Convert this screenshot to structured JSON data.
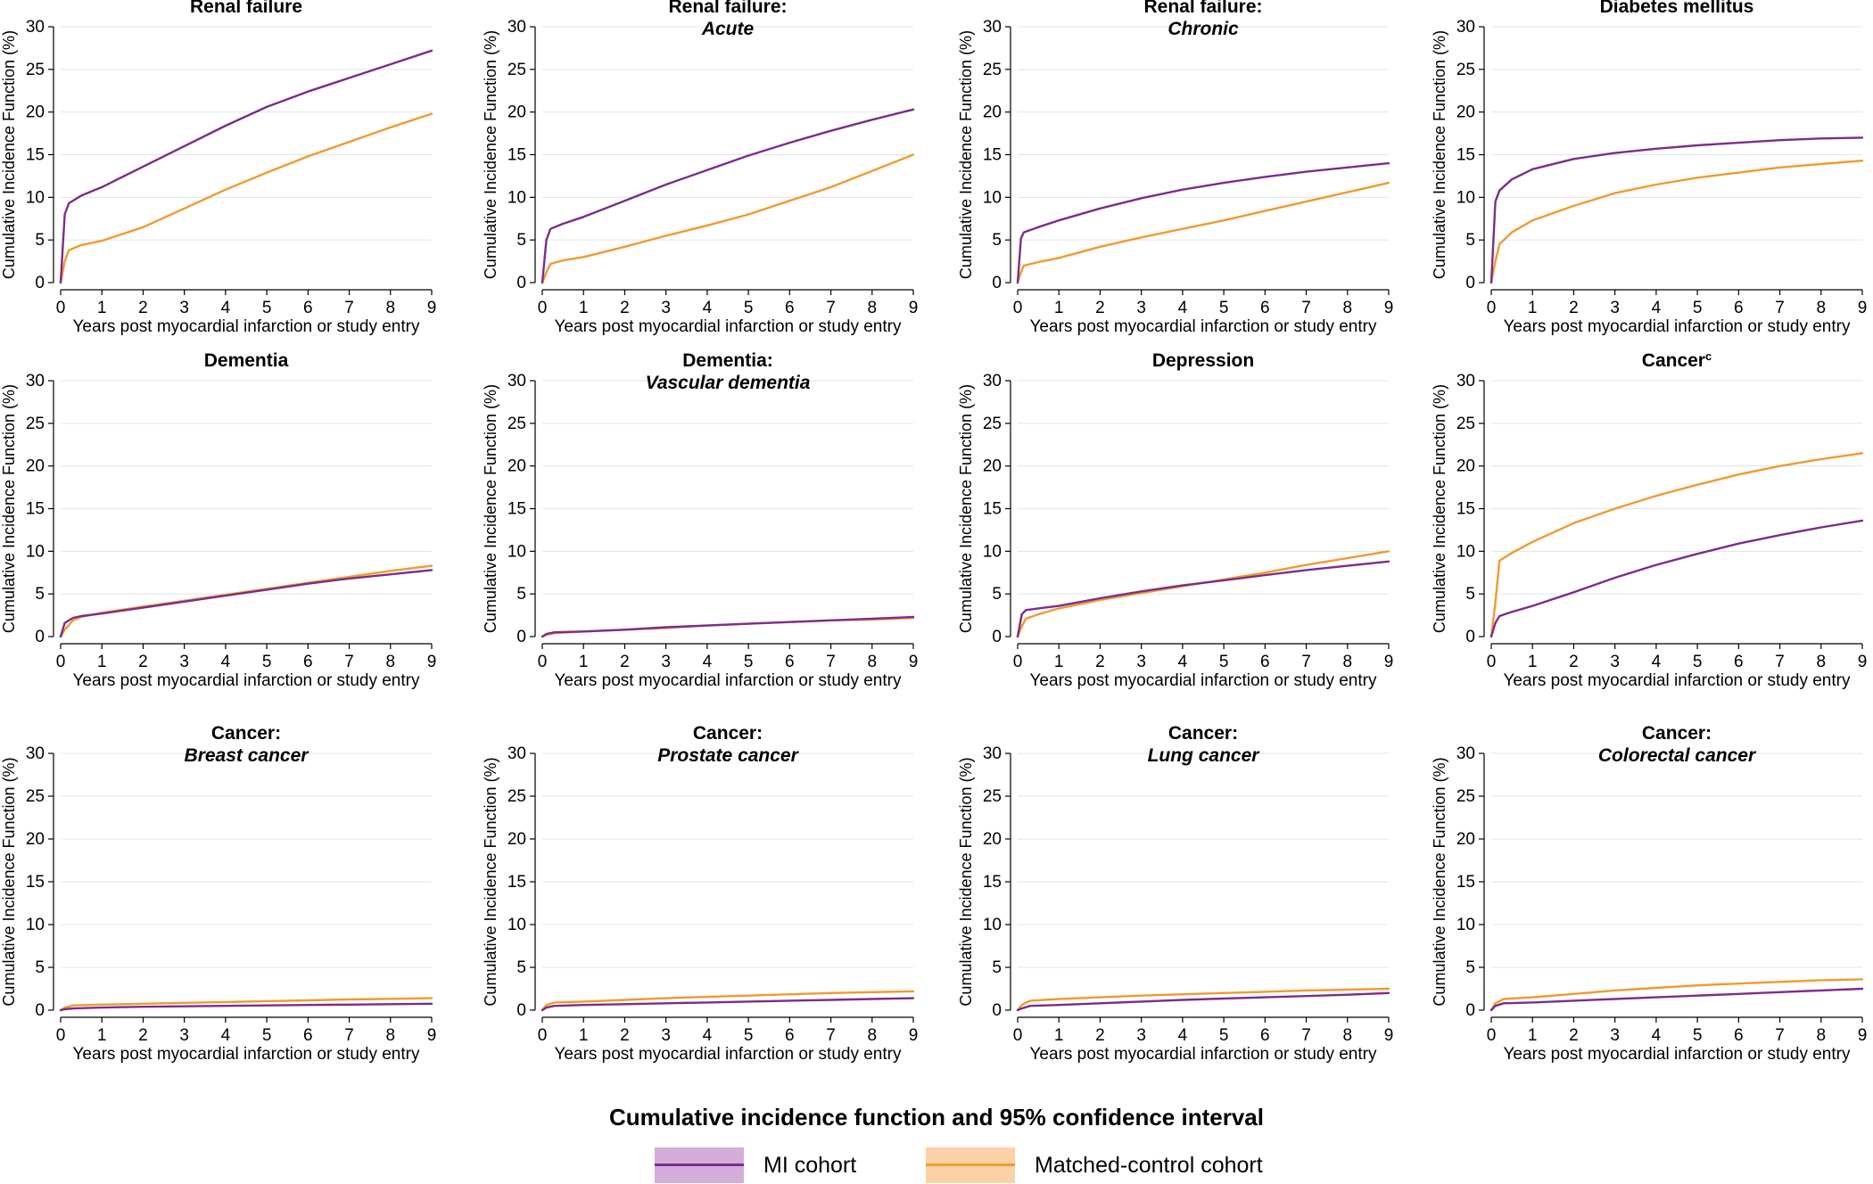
{
  "colors": {
    "mi": "#7B2D8B",
    "mi_band": "#D4AED9",
    "control": "#F09A2F",
    "control_band": "#FBD2A6",
    "grid": "#dce6ea"
  },
  "axis": {
    "ylabel": "Cumulative Incidence Function (%)",
    "xlabel": "Years post myocardial infarction or study entry",
    "xticks": [
      0,
      1,
      2,
      3,
      4,
      5,
      6,
      7,
      8,
      9
    ],
    "yticks": [
      0,
      5,
      10,
      15,
      20,
      25,
      30
    ]
  },
  "legend": {
    "title": "Cumulative incidence function and 95% confidence interval",
    "mi_label": "MI cohort",
    "control_label": "Matched-control cohort"
  },
  "chart_data": [
    {
      "type": "line",
      "title": "Renal failure",
      "subtitle": "",
      "x": [
        0,
        0.1,
        0.2,
        0.5,
        1,
        2,
        3,
        4,
        5,
        6,
        7,
        8,
        9
      ],
      "series": [
        {
          "name": "MI cohort",
          "values": [
            0,
            8.0,
            9.3,
            10.2,
            11.2,
            13.6,
            16.0,
            18.4,
            20.6,
            22.4,
            24.0,
            25.6,
            27.2
          ]
        },
        {
          "name": "Matched-control cohort",
          "values": [
            0,
            2.5,
            3.8,
            4.4,
            4.9,
            6.5,
            8.7,
            10.9,
            12.9,
            14.8,
            16.5,
            18.2,
            19.8
          ]
        }
      ],
      "xlim": [
        0,
        9
      ],
      "ylim": [
        0,
        30
      ]
    },
    {
      "type": "line",
      "title": "Renal failure:",
      "subtitle": "Acute",
      "x": [
        0,
        0.1,
        0.2,
        0.5,
        1,
        2,
        3,
        4,
        5,
        6,
        7,
        8,
        9
      ],
      "series": [
        {
          "name": "MI cohort",
          "values": [
            0,
            5.0,
            6.3,
            6.9,
            7.7,
            9.6,
            11.5,
            13.2,
            14.9,
            16.4,
            17.8,
            19.1,
            20.3
          ]
        },
        {
          "name": "Matched-control cohort",
          "values": [
            0,
            1.2,
            2.2,
            2.6,
            3.0,
            4.2,
            5.5,
            6.7,
            8.0,
            9.6,
            11.2,
            13.1,
            15.0
          ]
        }
      ],
      "xlim": [
        0,
        9
      ],
      "ylim": [
        0,
        30
      ]
    },
    {
      "type": "line",
      "title": "Renal failure:",
      "subtitle": "Chronic",
      "x": [
        0,
        0.08,
        0.15,
        0.5,
        1,
        2,
        3,
        4,
        5,
        6,
        7,
        8,
        9
      ],
      "series": [
        {
          "name": "MI cohort",
          "values": [
            0,
            5.2,
            5.9,
            6.5,
            7.3,
            8.7,
            9.9,
            10.9,
            11.7,
            12.4,
            13.0,
            13.5,
            14.0
          ]
        },
        {
          "name": "Matched-control cohort",
          "values": [
            0,
            1.2,
            2.0,
            2.4,
            2.9,
            4.2,
            5.3,
            6.3,
            7.3,
            8.4,
            9.5,
            10.6,
            11.7
          ]
        }
      ],
      "xlim": [
        0,
        9
      ],
      "ylim": [
        0,
        30
      ]
    },
    {
      "type": "line",
      "title": "Diabetes mellitus",
      "subtitle": "",
      "x": [
        0,
        0.1,
        0.2,
        0.5,
        1,
        2,
        3,
        4,
        5,
        6,
        7,
        8,
        9
      ],
      "series": [
        {
          "name": "MI cohort",
          "values": [
            0,
            9.5,
            10.8,
            12.1,
            13.3,
            14.5,
            15.2,
            15.7,
            16.1,
            16.4,
            16.7,
            16.9,
            17.0
          ]
        },
        {
          "name": "Matched-control cohort",
          "values": [
            0,
            2.5,
            4.5,
            5.9,
            7.3,
            9.0,
            10.5,
            11.5,
            12.3,
            12.9,
            13.5,
            13.9,
            14.3
          ]
        }
      ],
      "xlim": [
        0,
        9
      ],
      "ylim": [
        0,
        30
      ]
    },
    {
      "type": "line",
      "title": "Dementia",
      "subtitle": "",
      "x": [
        0,
        0.1,
        0.3,
        0.5,
        1,
        2,
        3,
        4,
        5,
        6,
        7,
        8,
        9
      ],
      "series": [
        {
          "name": "MI cohort",
          "values": [
            0,
            1.6,
            2.2,
            2.4,
            2.7,
            3.4,
            4.1,
            4.8,
            5.5,
            6.2,
            6.8,
            7.3,
            7.8
          ]
        },
        {
          "name": "Matched-control cohort",
          "values": [
            0,
            0.8,
            1.9,
            2.3,
            2.8,
            3.5,
            4.2,
            4.9,
            5.6,
            6.3,
            7.0,
            7.7,
            8.3
          ]
        }
      ],
      "xlim": [
        0,
        9
      ],
      "ylim": [
        0,
        30
      ]
    },
    {
      "type": "line",
      "title": "Dementia:",
      "subtitle": "Vascular dementia",
      "x": [
        0,
        0.1,
        0.3,
        1,
        2,
        3,
        4,
        5,
        6,
        7,
        8,
        9
      ],
      "series": [
        {
          "name": "MI cohort",
          "values": [
            0,
            0.3,
            0.5,
            0.6,
            0.8,
            1.1,
            1.3,
            1.5,
            1.7,
            1.9,
            2.1,
            2.3
          ]
        },
        {
          "name": "Matched-control cohort",
          "values": [
            0,
            0.2,
            0.4,
            0.6,
            0.8,
            1.0,
            1.3,
            1.5,
            1.7,
            1.9,
            2.0,
            2.2
          ]
        }
      ],
      "xlim": [
        0,
        9
      ],
      "ylim": [
        0,
        30
      ]
    },
    {
      "type": "line",
      "title": "Depression",
      "subtitle": "",
      "x": [
        0,
        0.1,
        0.2,
        0.5,
        1,
        2,
        3,
        4,
        5,
        6,
        7,
        8,
        9
      ],
      "series": [
        {
          "name": "MI cohort",
          "values": [
            0,
            2.6,
            3.1,
            3.3,
            3.6,
            4.5,
            5.3,
            6.0,
            6.6,
            7.2,
            7.8,
            8.3,
            8.8
          ]
        },
        {
          "name": "Matched-control cohort",
          "values": [
            0,
            1.2,
            2.1,
            2.6,
            3.3,
            4.3,
            5.1,
            5.9,
            6.7,
            7.5,
            8.4,
            9.2,
            10.0
          ]
        }
      ],
      "xlim": [
        0,
        9
      ],
      "ylim": [
        0,
        30
      ]
    },
    {
      "type": "line",
      "title": "Cancer",
      "title_superscript": "c",
      "subtitle": "",
      "x": [
        0,
        0.1,
        0.2,
        0.5,
        1,
        2,
        3,
        4,
        5,
        6,
        7,
        8,
        9
      ],
      "series": [
        {
          "name": "MI cohort",
          "values": [
            0,
            1.6,
            2.4,
            2.9,
            3.6,
            5.2,
            6.9,
            8.4,
            9.7,
            10.9,
            11.9,
            12.8,
            13.6
          ]
        },
        {
          "name": "Matched-control cohort",
          "values": [
            0,
            4.0,
            8.9,
            9.8,
            11.1,
            13.3,
            15.0,
            16.5,
            17.8,
            19.0,
            20.0,
            20.8,
            21.5
          ]
        }
      ],
      "xlim": [
        0,
        9
      ],
      "ylim": [
        0,
        30
      ]
    },
    {
      "type": "line",
      "title": "Cancer:",
      "subtitle": "Breast cancer",
      "x": [
        0,
        0.1,
        0.3,
        1,
        2,
        3,
        4,
        5,
        6,
        7,
        8,
        9
      ],
      "series": [
        {
          "name": "MI cohort",
          "values": [
            0,
            0.1,
            0.2,
            0.3,
            0.4,
            0.45,
            0.5,
            0.55,
            0.6,
            0.65,
            0.7,
            0.75
          ]
        },
        {
          "name": "Matched-control cohort",
          "values": [
            0,
            0.3,
            0.55,
            0.65,
            0.75,
            0.85,
            0.95,
            1.05,
            1.15,
            1.25,
            1.32,
            1.4
          ]
        }
      ],
      "xlim": [
        0,
        9
      ],
      "ylim": [
        0,
        30
      ]
    },
    {
      "type": "line",
      "title": "Cancer:",
      "subtitle": "Prostate cancer",
      "x": [
        0,
        0.1,
        0.3,
        1,
        2,
        3,
        4,
        5,
        6,
        7,
        8,
        9
      ],
      "series": [
        {
          "name": "MI cohort",
          "values": [
            0,
            0.3,
            0.5,
            0.6,
            0.7,
            0.8,
            0.9,
            1.0,
            1.1,
            1.2,
            1.3,
            1.4
          ]
        },
        {
          "name": "Matched-control cohort",
          "values": [
            0,
            0.6,
            0.9,
            1.0,
            1.2,
            1.4,
            1.55,
            1.7,
            1.85,
            2.0,
            2.1,
            2.2
          ]
        }
      ],
      "xlim": [
        0,
        9
      ],
      "ylim": [
        0,
        30
      ]
    },
    {
      "type": "line",
      "title": "Cancer:",
      "subtitle": "Lung cancer",
      "x": [
        0,
        0.1,
        0.3,
        1,
        2,
        3,
        4,
        5,
        6,
        7,
        8,
        9
      ],
      "series": [
        {
          "name": "MI cohort",
          "values": [
            0,
            0.2,
            0.5,
            0.6,
            0.8,
            1.0,
            1.2,
            1.35,
            1.5,
            1.65,
            1.8,
            2.0
          ]
        },
        {
          "name": "Matched-control cohort",
          "values": [
            0,
            0.6,
            1.1,
            1.3,
            1.5,
            1.7,
            1.85,
            2.0,
            2.15,
            2.3,
            2.4,
            2.5
          ]
        }
      ],
      "xlim": [
        0,
        9
      ],
      "ylim": [
        0,
        30
      ]
    },
    {
      "type": "line",
      "title": "Cancer:",
      "subtitle": "Colorectal cancer",
      "x": [
        0,
        0.1,
        0.3,
        1,
        2,
        3,
        4,
        5,
        6,
        7,
        8,
        9
      ],
      "series": [
        {
          "name": "MI cohort",
          "values": [
            0,
            0.5,
            0.8,
            0.9,
            1.1,
            1.3,
            1.5,
            1.7,
            1.9,
            2.1,
            2.3,
            2.5
          ]
        },
        {
          "name": "Matched-control cohort",
          "values": [
            0,
            0.8,
            1.3,
            1.5,
            1.9,
            2.3,
            2.6,
            2.9,
            3.1,
            3.3,
            3.5,
            3.6
          ]
        }
      ],
      "xlim": [
        0,
        9
      ],
      "ylim": [
        0,
        30
      ]
    }
  ]
}
